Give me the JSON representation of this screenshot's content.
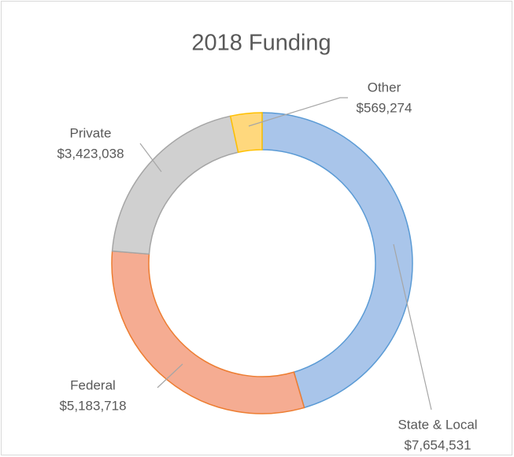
{
  "chart_data": {
    "type": "doughnut",
    "title": "2018 Funding",
    "categories": [
      "State & Local",
      "Federal",
      "Private",
      "Other"
    ],
    "values": [
      7654531,
      5183718,
      3423038,
      569274
    ],
    "value_labels": [
      "$7,654,531",
      "$5,183,718",
      "$3,423,038",
      "$569,274"
    ],
    "colors": [
      "#a9c5ea",
      "#f5ac92",
      "#d0d0d0",
      "#ffd87d"
    ],
    "stroke_colors": [
      "#5b9bd5",
      "#ed7d31",
      "#a5a5a5",
      "#ffc000"
    ]
  }
}
